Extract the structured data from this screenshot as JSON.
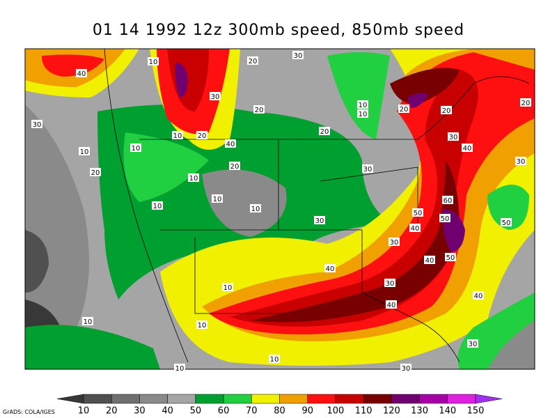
{
  "title": "01 14 1992 12z 300mb speed, 850mb speed",
  "credit": "GrADS: COLA/IGES",
  "contour_labels": [
    "40",
    "10",
    "20",
    "30",
    "30",
    "30",
    "20",
    "10",
    "10",
    "20",
    "20",
    "20",
    "10",
    "20",
    "10",
    "10",
    "20",
    "40",
    "20",
    "30",
    "40",
    "30",
    "20",
    "30",
    "10",
    "10",
    "10",
    "10",
    "60",
    "50",
    "50",
    "30",
    "40",
    "50",
    "30",
    "50",
    "40",
    "40",
    "10",
    "30",
    "40",
    "40",
    "10",
    "10",
    "30",
    "10",
    "10",
    "30"
  ],
  "colorbar": {
    "labels": [
      10,
      20,
      30,
      40,
      50,
      60,
      70,
      80,
      90,
      100,
      110,
      120,
      130,
      140,
      150
    ],
    "colors": [
      "#383838",
      "#505050",
      "#707070",
      "#8a8a8a",
      "#a5a5a5",
      "#00a030",
      "#20d040",
      "#f0f000",
      "#f0a000",
      "#ff1010",
      "#c80000",
      "#780000",
      "#700070",
      "#a800a8",
      "#e020e0",
      "#a030f0"
    ]
  }
}
